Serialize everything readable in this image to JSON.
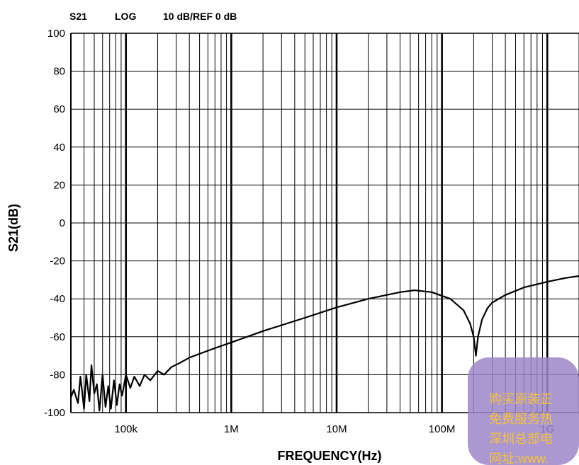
{
  "header": {
    "param": "S21",
    "format": "LOG",
    "scale": "10 dB/REF 0 dB"
  },
  "chart_data": {
    "type": "line",
    "xscale": "log",
    "xlabel": "FREQUENCY(Hz)",
    "ylabel": "S21(dB)",
    "xlim": [
      30000,
      2000000000
    ],
    "ylim": [
      -100,
      100
    ],
    "grid": true,
    "yticks": [
      "100",
      "80",
      "60",
      "40",
      "20",
      "0",
      "-20",
      "-40",
      "-60",
      "-80",
      "-100"
    ],
    "xtick_labels": [
      {
        "x": 100000,
        "label": "100k"
      },
      {
        "x": 1000000,
        "label": "1M"
      },
      {
        "x": 10000000,
        "label": "10M"
      },
      {
        "x": 100000000,
        "label": "100M"
      },
      {
        "x": 1000000000,
        "label": "1G"
      }
    ],
    "series": [
      {
        "color": "#000000",
        "points": [
          [
            30000,
            -92
          ],
          [
            32000,
            -88
          ],
          [
            35000,
            -95
          ],
          [
            37000,
            -81
          ],
          [
            40000,
            -98
          ],
          [
            42000,
            -80
          ],
          [
            45000,
            -94
          ],
          [
            47000,
            -75
          ],
          [
            50000,
            -90
          ],
          [
            53000,
            -85
          ],
          [
            56000,
            -99
          ],
          [
            60000,
            -80
          ],
          [
            64000,
            -97
          ],
          [
            68000,
            -86
          ],
          [
            72000,
            -98
          ],
          [
            77000,
            -83
          ],
          [
            82000,
            -96
          ],
          [
            87000,
            -85
          ],
          [
            92000,
            -91
          ],
          [
            100000,
            -80
          ],
          [
            110000,
            -87
          ],
          [
            120000,
            -81
          ],
          [
            135000,
            -86
          ],
          [
            150000,
            -80
          ],
          [
            170000,
            -83
          ],
          [
            200000,
            -78
          ],
          [
            230000,
            -80
          ],
          [
            270000,
            -76
          ],
          [
            320000,
            -74
          ],
          [
            400000,
            -71
          ],
          [
            500000,
            -69
          ],
          [
            700000,
            -66
          ],
          [
            1000000,
            -63
          ],
          [
            2000000,
            -57
          ],
          [
            5000000,
            -50
          ],
          [
            10000000,
            -44.5
          ],
          [
            20000000,
            -40
          ],
          [
            40000000,
            -36.5
          ],
          [
            55000000,
            -35.5
          ],
          [
            80000000,
            -36.5
          ],
          [
            120000000,
            -40
          ],
          [
            160000000,
            -46
          ],
          [
            185000000,
            -53
          ],
          [
            200000000,
            -60
          ],
          [
            210000000,
            -70
          ],
          [
            220000000,
            -60
          ],
          [
            240000000,
            -51
          ],
          [
            270000000,
            -45
          ],
          [
            300000000,
            -42
          ],
          [
            400000000,
            -38
          ],
          [
            600000000,
            -34
          ],
          [
            1000000000,
            -31
          ],
          [
            1500000000,
            -29
          ],
          [
            2000000000,
            -28
          ]
        ]
      }
    ]
  },
  "watermark": {
    "lines": [
      "购买原装正",
      "免费服务热",
      "深圳总部电",
      "网址:www."
    ],
    "color": "#f3c23a"
  }
}
